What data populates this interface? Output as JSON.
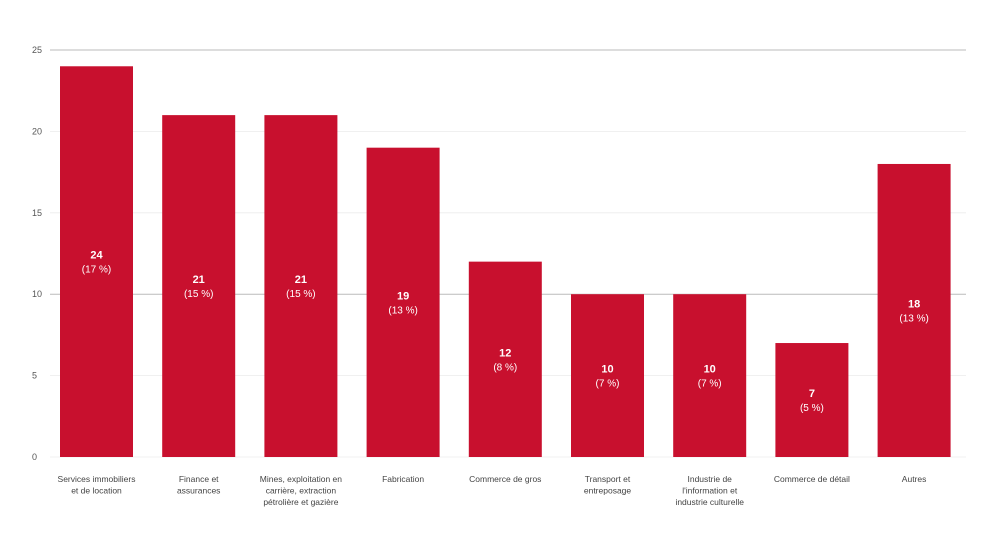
{
  "chart_data": {
    "type": "bar",
    "categories": [
      [
        "Services immobiliers",
        "et de location"
      ],
      [
        "Finance et",
        "assurances"
      ],
      [
        "Mines, exploitation en",
        "carrière, extraction",
        "pétrolière et gazière"
      ],
      [
        "Fabrication"
      ],
      [
        "Commerce de gros"
      ],
      [
        "Transport et",
        "entreposage"
      ],
      [
        "Industrie de",
        "l'information et",
        "industrie culturelle"
      ],
      [
        "Commerce de détail"
      ],
      [
        "Autres"
      ]
    ],
    "values": [
      24,
      21,
      21,
      19,
      12,
      10,
      10,
      7,
      18
    ],
    "value_labels": [
      "24",
      "21",
      "21",
      "19",
      "12",
      "10",
      "10",
      "7",
      "18"
    ],
    "percent_labels": [
      "(17 %)",
      "(15 %)",
      "(15 %)",
      "(13 %)",
      "(8 %)",
      "(7 %)",
      "(7 %)",
      "(5 %)",
      "(13 %)"
    ],
    "yticks": [
      0,
      5,
      10,
      15,
      20,
      25
    ],
    "ytick_labels": [
      "0",
      "5",
      "10",
      "15",
      "20",
      "25"
    ],
    "ylim": [
      0,
      25
    ],
    "title": "",
    "xlabel": "",
    "ylabel": "",
    "bar_color": "#c8102e",
    "grid": true
  }
}
